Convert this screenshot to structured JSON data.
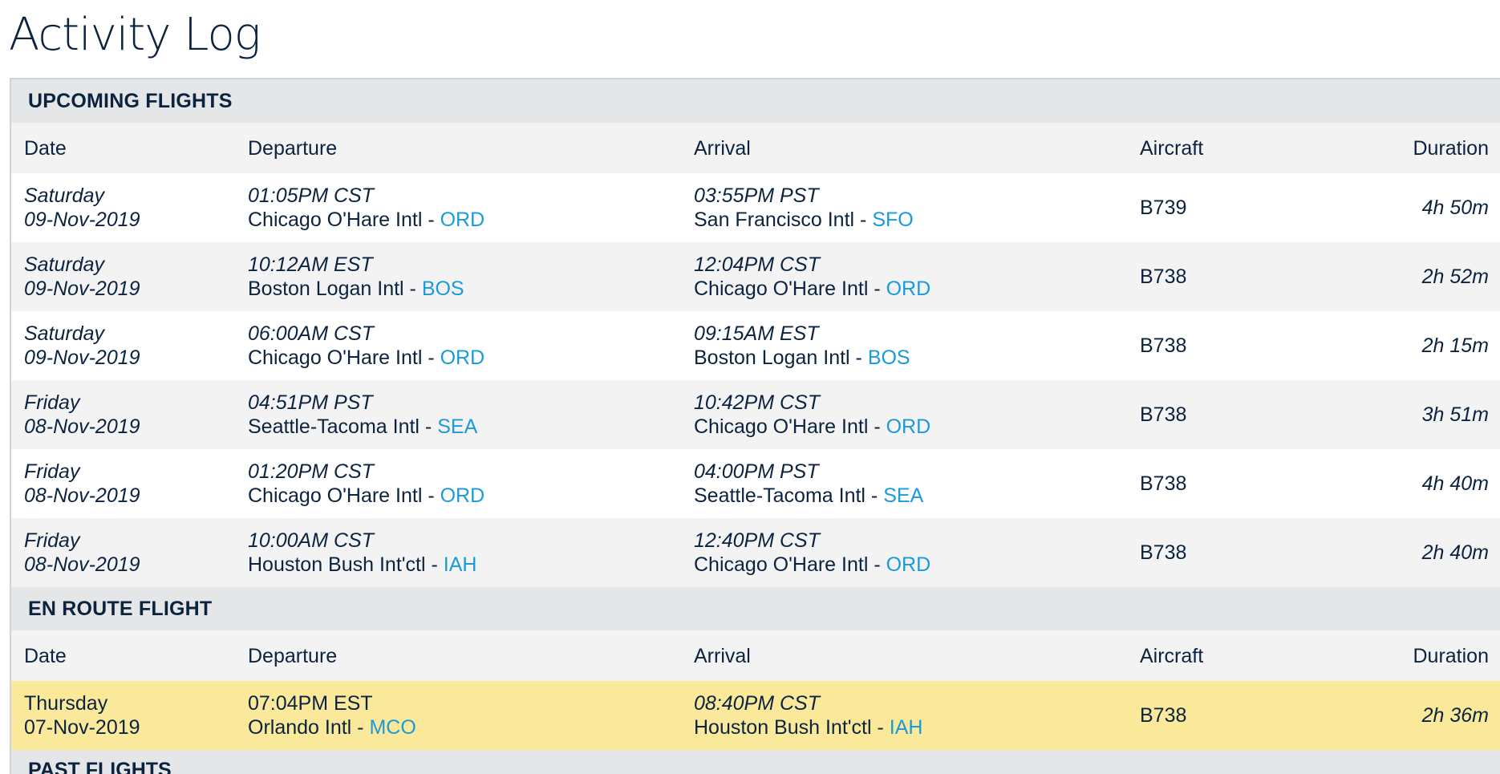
{
  "page": {
    "title": "Activity Log"
  },
  "columns": {
    "date": "Date",
    "departure": "Departure",
    "arrival": "Arrival",
    "aircraft": "Aircraft",
    "duration": "Duration"
  },
  "upcoming": {
    "title": "UPCOMING FLIGHTS",
    "rows": [
      {
        "day": "Saturday",
        "date": "09-Nov-2019",
        "dep_time": "01:05PM CST",
        "dep_airport": "Chicago O'Hare Intl - ",
        "dep_code": "ORD",
        "arr_time": "03:55PM PST",
        "arr_airport": "San Francisco Intl - ",
        "arr_code": "SFO",
        "aircraft": "B739",
        "duration": "4h 50m"
      },
      {
        "day": "Saturday",
        "date": "09-Nov-2019",
        "dep_time": "10:12AM EST",
        "dep_airport": "Boston Logan Intl - ",
        "dep_code": "BOS",
        "arr_time": "12:04PM CST",
        "arr_airport": "Chicago O'Hare Intl - ",
        "arr_code": "ORD",
        "aircraft": "B738",
        "duration": "2h 52m"
      },
      {
        "day": "Saturday",
        "date": "09-Nov-2019",
        "dep_time": "06:00AM CST",
        "dep_airport": "Chicago O'Hare Intl - ",
        "dep_code": "ORD",
        "arr_time": "09:15AM EST",
        "arr_airport": "Boston Logan Intl - ",
        "arr_code": "BOS",
        "aircraft": "B738",
        "duration": "2h 15m"
      },
      {
        "day": "Friday",
        "date": "08-Nov-2019",
        "dep_time": "04:51PM PST",
        "dep_airport": "Seattle-Tacoma Intl - ",
        "dep_code": "SEA",
        "arr_time": "10:42PM CST",
        "arr_airport": "Chicago O'Hare Intl - ",
        "arr_code": "ORD",
        "aircraft": "B738",
        "duration": "3h 51m"
      },
      {
        "day": "Friday",
        "date": "08-Nov-2019",
        "dep_time": "01:20PM CST",
        "dep_airport": "Chicago O'Hare Intl - ",
        "dep_code": "ORD",
        "arr_time": "04:00PM PST",
        "arr_airport": "Seattle-Tacoma Intl - ",
        "arr_code": "SEA",
        "aircraft": "B738",
        "duration": "4h 40m"
      },
      {
        "day": "Friday",
        "date": "08-Nov-2019",
        "dep_time": "10:00AM CST",
        "dep_airport": "Houston Bush Int'ctl - ",
        "dep_code": "IAH",
        "arr_time": "12:40PM CST",
        "arr_airport": "Chicago O'Hare Intl - ",
        "arr_code": "ORD",
        "aircraft": "B738",
        "duration": "2h 40m"
      }
    ]
  },
  "enroute": {
    "title": "EN ROUTE FLIGHT",
    "row": {
      "day": "Thursday",
      "date": "07-Nov-2019",
      "dep_time": "07:04PM EST",
      "dep_airport": "Orlando Intl - ",
      "dep_code": "MCO",
      "arr_time": "08:40PM CST",
      "arr_airport": "Houston Bush Int'ctl - ",
      "arr_code": "IAH",
      "aircraft": "B738",
      "duration": "2h 36m"
    }
  },
  "past": {
    "title": "PAST FLIGHTS"
  },
  "colors": {
    "navy": "#0c2340",
    "link": "#1a9ad8",
    "enroute_highlight": "#fae99a",
    "section_bg": "#e5e6e8"
  }
}
